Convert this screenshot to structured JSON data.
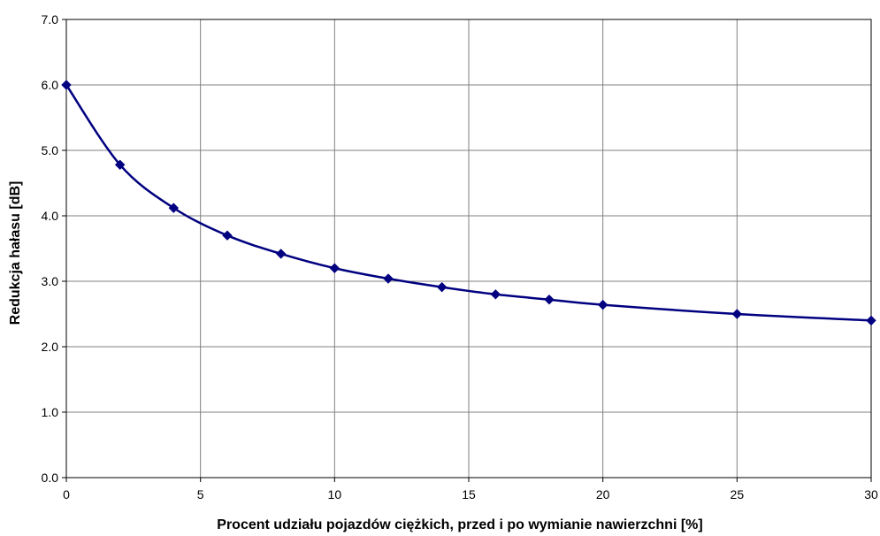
{
  "chart_data": {
    "type": "line",
    "title": "",
    "xlabel": "Procent udziału pojazdów ciężkich, przed i po wymianie nawierzchni  [%]",
    "ylabel": "Redukcja hałasu [dB]",
    "xlim": [
      0,
      30
    ],
    "ylim": [
      0,
      7
    ],
    "grid": true,
    "x_ticks": [
      "0",
      "5",
      "10",
      "15",
      "20",
      "25",
      "30"
    ],
    "y_ticks": [
      "0.0",
      "1.0",
      "2.0",
      "3.0",
      "4.0",
      "5.0",
      "6.0",
      "7.0"
    ],
    "series": [
      {
        "x": [
          0,
          2,
          4,
          6,
          8,
          10,
          12,
          14,
          16,
          18,
          20,
          25,
          30
        ],
        "y": [
          6.0,
          4.78,
          4.12,
          3.7,
          3.42,
          3.2,
          3.04,
          2.91,
          2.8,
          2.72,
          2.64,
          2.5,
          2.4
        ],
        "color": "#000080",
        "marker": "diamond",
        "smooth": true
      }
    ]
  }
}
